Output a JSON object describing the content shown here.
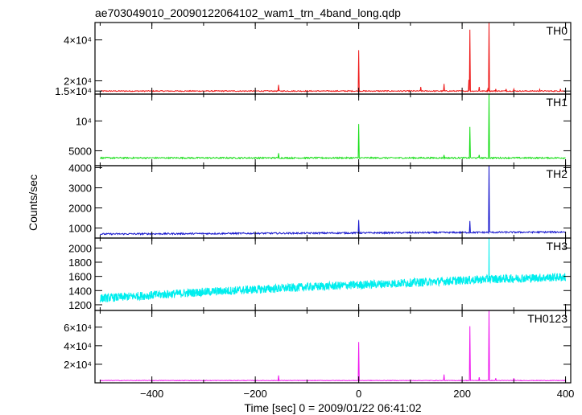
{
  "chart_data": {
    "type": "line",
    "title": "ae703049010_20090122064102_wam1_trn_4band_long.qdp",
    "xlabel": "Time [sec] 0 = 2009/01/22 06:41:02",
    "ylabel": "Counts/sec",
    "xlim": [
      -510,
      410
    ],
    "x_ticks": [
      -400,
      -200,
      0,
      200,
      400
    ],
    "x_tick_labels": [
      "−400",
      "−200",
      "0",
      "200",
      "400"
    ],
    "panels": [
      {
        "name": "TH0",
        "color": "#ee1111",
        "ylim": [
          13500,
          48500
        ],
        "y_ticks": [
          15000,
          20000,
          40000
        ],
        "y_tick_labels": [
          "1.5×10⁴",
          "2×10⁴",
          "4×10⁴"
        ],
        "baseline": [
          [
            -500,
            15000
          ],
          [
            400,
            15000
          ]
        ],
        "noise": 250,
        "spikes": [
          [
            -155,
            18000
          ],
          [
            0,
            35000
          ],
          [
            120,
            17000
          ],
          [
            165,
            18500
          ],
          [
            213,
            20500
          ],
          [
            215,
            45000
          ],
          [
            233,
            17000
          ],
          [
            250,
            16500
          ],
          [
            252,
            48500
          ],
          [
            265,
            16000
          ],
          [
            285,
            16000
          ],
          [
            300,
            16000
          ],
          [
            350,
            15800
          ],
          [
            390,
            16000
          ]
        ]
      },
      {
        "name": "TH1",
        "color": "#11dd11",
        "ylim": [
          2500,
          14500
        ],
        "y_ticks": [
          5000,
          10000
        ],
        "y_tick_labels": [
          "5000",
          "10⁴"
        ],
        "baseline": [
          [
            -500,
            3800
          ],
          [
            400,
            3800
          ]
        ],
        "noise": 120,
        "spikes": [
          [
            -155,
            4600
          ],
          [
            0,
            9500
          ],
          [
            165,
            4300
          ],
          [
            215,
            9000
          ],
          [
            233,
            4300
          ],
          [
            252,
            14500
          ]
        ]
      },
      {
        "name": "TH2",
        "color": "#1111cc",
        "ylim": [
          500,
          4100
        ],
        "y_ticks": [
          1000,
          2000,
          3000,
          4000
        ],
        "y_tick_labels": [
          "1000",
          "2000",
          "3000",
          "4000"
        ],
        "baseline": [
          [
            -500,
            700
          ],
          [
            400,
            800
          ]
        ],
        "noise": 40,
        "spikes": [
          [
            0,
            1400
          ],
          [
            215,
            1350
          ],
          [
            252,
            4100
          ]
        ]
      },
      {
        "name": "TH3",
        "color": "#00eeee",
        "ylim": [
          1120,
          2140
        ],
        "y_ticks": [
          1200,
          1400,
          1600,
          1800,
          2000
        ],
        "y_tick_labels": [
          "1200",
          "1400",
          "1600",
          "1800",
          "2000"
        ],
        "baseline": [
          [
            -500,
            1290
          ],
          [
            -300,
            1380
          ],
          [
            -100,
            1450
          ],
          [
            100,
            1510
          ],
          [
            250,
            1560
          ],
          [
            400,
            1590
          ]
        ],
        "noise": 60,
        "spikes": [
          [
            252,
            2140
          ]
        ]
      },
      {
        "name": "TH0123",
        "color": "#ee11ee",
        "ylim": [
          0,
          78000
        ],
        "y_ticks": [
          20000,
          40000,
          60000
        ],
        "y_tick_labels": [
          "2×10⁴",
          "4×10⁴",
          "6×10⁴"
        ],
        "baseline": [
          [
            -500,
            2500
          ],
          [
            400,
            2500
          ]
        ],
        "noise": 300,
        "spikes": [
          [
            -155,
            8000
          ],
          [
            0,
            44000
          ],
          [
            165,
            9000
          ],
          [
            215,
            61000
          ],
          [
            233,
            6000
          ],
          [
            252,
            78000
          ],
          [
            265,
            5000
          ],
          [
            300,
            5000
          ]
        ]
      }
    ]
  }
}
